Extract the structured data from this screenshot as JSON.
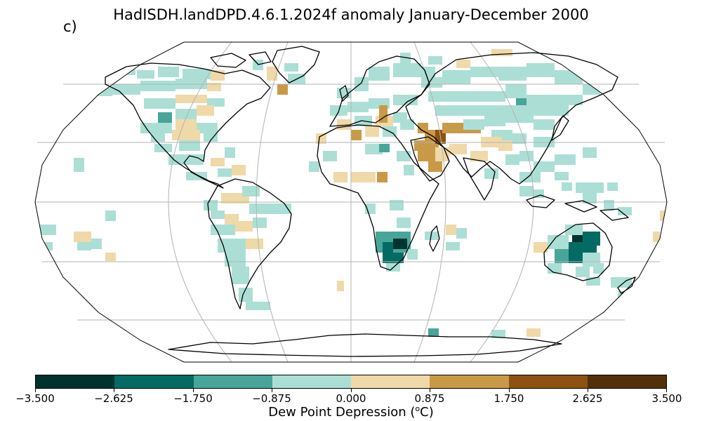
{
  "panel_label": "c)",
  "title": "HadISDH.landDPD.4.6.1.2024f anomaly January-December 2000",
  "colorbar": {
    "label_main": "Dew Point Depression (",
    "label_sup": "o",
    "label_end": "C)",
    "ticks": [
      "−3.500",
      "−2.625",
      "−1.750",
      "−0.875",
      "0.000",
      "0.875",
      "1.750",
      "2.625",
      "3.500"
    ],
    "colors": [
      "#00332d",
      "#036b63",
      "#48a59a",
      "#abdfd6",
      "#f0d9a8",
      "#c89a48",
      "#8d520f",
      "#54300a"
    ]
  },
  "colors": {
    "coastline": "#000000",
    "graticule": "#b3b3b3",
    "background": "#ffffff"
  }
}
